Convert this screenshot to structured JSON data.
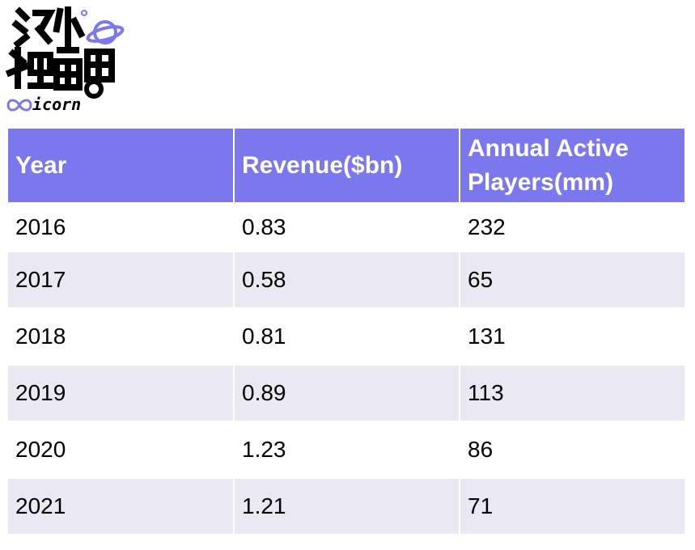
{
  "logo": {
    "wordmark": "icorn",
    "chinese_text": "海外独角兽"
  },
  "table": {
    "headers": [
      "Year",
      "Revenue($bn)",
      "Annual Active Players(mm)"
    ],
    "rows": [
      [
        "2016",
        "0.83",
        "232"
      ],
      [
        "2017",
        "0.58",
        "65"
      ],
      [
        "2018",
        "0.81",
        "131"
      ],
      [
        "2019",
        "0.89",
        "113"
      ],
      [
        "2020",
        "1.23",
        "86"
      ],
      [
        "2021",
        "1.21",
        "71"
      ]
    ]
  },
  "colors": {
    "header_bg": "#7b78ee",
    "stripe_bg": "#e9e8f3",
    "logo_accent": "#7b78ee"
  }
}
